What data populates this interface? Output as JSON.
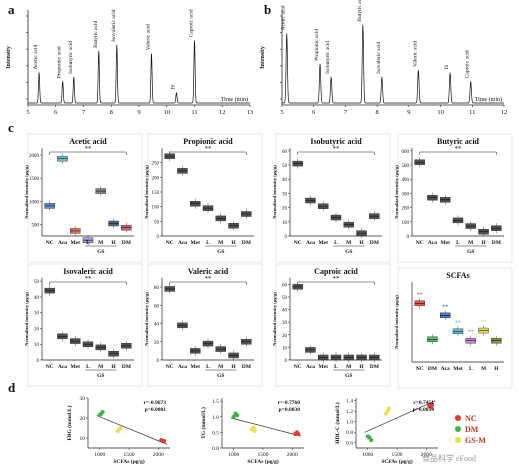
{
  "panels": {
    "a": "a",
    "b": "b",
    "c": "c",
    "d": "d"
  },
  "chromatograms": [
    {
      "panel": "a",
      "xlabel": "Time (min)",
      "ylabel": "Intensity",
      "xlim": [
        5,
        13
      ],
      "xticks": [
        "5",
        "6",
        "7",
        "8",
        "9",
        "10",
        "11",
        "12",
        "13"
      ],
      "peaks": [
        {
          "time": 5.4,
          "height": 0.35,
          "label": "Acetic acid"
        },
        {
          "time": 6.25,
          "height": 0.25,
          "label": "Propionic acid"
        },
        {
          "time": 6.65,
          "height": 0.3,
          "label": "Isobutyric acid"
        },
        {
          "time": 7.55,
          "height": 0.6,
          "label": "Butyric acid"
        },
        {
          "time": 8.2,
          "height": 0.67,
          "label": "Isovaleric acid"
        },
        {
          "time": 9.45,
          "height": 0.57,
          "label": "Valeric acid"
        },
        {
          "time": 10.35,
          "height": 0.12,
          "label": "IS"
        },
        {
          "time": 11.0,
          "height": 0.72,
          "label": "Caproic acid"
        }
      ]
    },
    {
      "panel": "b",
      "xlabel": "Time (min)",
      "ylabel": "Intensity",
      "xlim": [
        5,
        12
      ],
      "xticks": [
        "5",
        "6",
        "7",
        "8",
        "9",
        "10",
        "11",
        "12"
      ],
      "peaks": [
        {
          "time": 5.15,
          "height": 0.8,
          "label": "Acetic acid"
        },
        {
          "time": 6.2,
          "height": 0.45,
          "label": "Propionic acid"
        },
        {
          "time": 6.55,
          "height": 0.3,
          "label": "Isobutyric acid"
        },
        {
          "time": 7.55,
          "height": 0.9,
          "label": "Butyric acid"
        },
        {
          "time": 8.15,
          "height": 0.3,
          "label": "Isovaleric acid"
        },
        {
          "time": 9.3,
          "height": 0.38,
          "label": "Valeric acid"
        },
        {
          "time": 10.3,
          "height": 0.35,
          "label": "IS"
        },
        {
          "time": 10.95,
          "height": 0.25,
          "label": "Caproic acid"
        }
      ]
    }
  ],
  "chart_data": [
    {
      "type": "box",
      "title": "Acetic acid",
      "ylabel": "Normalized intensity (µg/g)",
      "yticks": [
        "500",
        "1000",
        "1500",
        "2000"
      ],
      "ylim": [
        250,
        2150
      ],
      "groups": [
        "NC",
        "Aca",
        "Met",
        "L",
        "M",
        "H",
        "DM"
      ],
      "subgroup_label": "GS",
      "values": [
        900,
        1920,
        360,
        160,
        1220,
        520,
        430
      ],
      "colors": [
        "#4a78c8",
        "#5bb3c2",
        "#d2634a",
        "#8d8de0",
        "#6f6f6f",
        "#37486e",
        "#c04a73"
      ],
      "significance": "**"
    },
    {
      "type": "box",
      "title": "Propionic acid",
      "ylabel": "Normalized intensity (µg/g)",
      "yticks": [
        "0",
        "50",
        "100",
        "150",
        "200",
        "250"
      ],
      "ylim": [
        0,
        300
      ],
      "groups": [
        "NC",
        "Aca",
        "Met",
        "L",
        "M",
        "H",
        "DM"
      ],
      "subgroup_label": "GS",
      "values": [
        272,
        222,
        110,
        95,
        60,
        35,
        75
      ],
      "colors": [
        "#333333",
        "#333333",
        "#333333",
        "#333333",
        "#333333",
        "#333333",
        "#333333"
      ],
      "significance": "**"
    },
    {
      "type": "box",
      "title": "Isobutyric acid",
      "ylabel": "Normalized intensity (µg/g)",
      "yticks": [
        "0",
        "10",
        "20",
        "30",
        "40",
        "50",
        "60"
      ],
      "ylim": [
        0,
        62
      ],
      "groups": [
        "NC",
        "Aca",
        "Met",
        "L",
        "M",
        "H",
        "DM"
      ],
      "subgroup_label": "GS",
      "values": [
        51,
        25,
        21,
        13,
        8,
        2,
        14
      ],
      "colors": [
        "#333333",
        "#333333",
        "#333333",
        "#333333",
        "#333333",
        "#333333",
        "#333333"
      ],
      "significance": "**"
    },
    {
      "type": "box",
      "title": "Butyric acid",
      "ylabel": "Normalized intensity (µg/g)",
      "yticks": [
        "0",
        "100",
        "200",
        "300",
        "400",
        "500",
        "600"
      ],
      "ylim": [
        0,
        620
      ],
      "groups": [
        "NC",
        "Aca",
        "Met",
        "L",
        "M",
        "H",
        "DM"
      ],
      "subgroup_label": "GS",
      "values": [
        520,
        270,
        255,
        110,
        70,
        30,
        55
      ],
      "colors": [
        "#333333",
        "#333333",
        "#333333",
        "#333333",
        "#333333",
        "#333333",
        "#333333"
      ],
      "significance": "**"
    },
    {
      "type": "box",
      "title": "Isovaleric acid",
      "ylabel": "Normalized intensity (µg/g)",
      "yticks": [
        "0",
        "10",
        "20",
        "30",
        "40",
        "50"
      ],
      "ylim": [
        0,
        52
      ],
      "groups": [
        "NC",
        "Aca",
        "Met",
        "L",
        "M",
        "H",
        "DM"
      ],
      "subgroup_label": "GS",
      "values": [
        44,
        15,
        12,
        10,
        8,
        4,
        9
      ],
      "colors": [
        "#333333",
        "#333333",
        "#333333",
        "#333333",
        "#333333",
        "#333333",
        "#333333"
      ],
      "significance": "**"
    },
    {
      "type": "box",
      "title": "Valeric acid",
      "ylabel": "Normalized intensity (µg/g)",
      "yticks": [
        "0",
        "20",
        "40",
        "60",
        "80"
      ],
      "ylim": [
        0,
        90
      ],
      "groups": [
        "NC",
        "Aca",
        "Met",
        "L",
        "M",
        "H",
        "DM"
      ],
      "subgroup_label": "GS",
      "values": [
        78,
        38,
        10,
        18,
        12,
        5,
        20
      ],
      "colors": [
        "#333333",
        "#333333",
        "#333333",
        "#333333",
        "#333333",
        "#333333",
        "#333333"
      ],
      "significance": "**"
    },
    {
      "type": "box",
      "title": "Caproic acid",
      "ylabel": "Normalized intensity (µg/g)",
      "yticks": [
        "0",
        "10",
        "20",
        "30",
        "40",
        "50",
        "60"
      ],
      "ylim": [
        0,
        65
      ],
      "groups": [
        "NC",
        "Aca",
        "Met",
        "L",
        "M",
        "H",
        "DM"
      ],
      "subgroup_label": "GS",
      "values": [
        58,
        8,
        2,
        2,
        2,
        2,
        2
      ],
      "colors": [
        "#333333",
        "#333333",
        "#333333",
        "#333333",
        "#333333",
        "#333333",
        "#333333"
      ],
      "significance": "**"
    },
    {
      "type": "box",
      "title": "SCFAs",
      "ylabel": "Normalized intensity (µg/g)",
      "yticks": [],
      "ylim": [
        0,
        3000
      ],
      "groups": [
        "NC",
        "DM",
        "Aca",
        "Met",
        "L",
        "M",
        "H"
      ],
      "subgroup_label": "",
      "values": [
        2200,
        850,
        1750,
        1150,
        800,
        1180,
        800
      ],
      "colors": [
        "#e23a2e",
        "#43b04a",
        "#2f5fb8",
        "#4ab6c6",
        "#c86ed0",
        "#e8d84a",
        "#7a7a2a"
      ],
      "significance": "**",
      "marks": [
        "**",
        "",
        "**",
        "**",
        "**",
        "**",
        ""
      ]
    },
    {
      "type": "scatter",
      "xlabel": "SCFAs (µg/g)",
      "ylabel": "FBG (mmol/L)",
      "xticks": [
        "1000",
        "1500",
        "2000"
      ],
      "yticks": [
        "10",
        "20",
        "30"
      ],
      "xlim": [
        800,
        2200
      ],
      "ylim": [
        5,
        30
      ],
      "stats": {
        "r": "r=-0.9673",
        "p": "p=0.0001"
      },
      "points": [
        [
          1020,
          22
        ],
        [
          1050,
          23
        ],
        [
          1000,
          21.5
        ],
        [
          1320,
          14
        ],
        [
          1360,
          15
        ],
        [
          1310,
          13.5
        ],
        [
          2050,
          9
        ],
        [
          2100,
          8.5
        ]
      ],
      "point_groups": [
        "DM",
        "DM",
        "DM",
        "GS-M",
        "GS-M",
        "GS-M",
        "NC",
        "NC"
      ]
    },
    {
      "type": "scatter",
      "xlabel": "SCFAs (µg/g)",
      "ylabel": "TG (mmol/L)",
      "xticks": [
        "1000",
        "1500",
        "2000"
      ],
      "yticks": [
        "0.0",
        "0.5",
        "1.0",
        "1.5"
      ],
      "xlim": [
        800,
        2200
      ],
      "ylim": [
        0,
        1.6
      ],
      "stats": {
        "r": "r=-0.7760",
        "p": "p=0.0030"
      },
      "points": [
        [
          1030,
          1.1
        ],
        [
          1060,
          1.05
        ],
        [
          1000,
          1.0
        ],
        [
          1340,
          0.65
        ],
        [
          1360,
          0.55
        ],
        [
          1310,
          0.6
        ],
        [
          2050,
          0.45
        ],
        [
          2100,
          0.45
        ],
        [
          2080,
          0.5
        ]
      ],
      "point_groups": [
        "DM",
        "DM",
        "DM",
        "GS-M",
        "GS-M",
        "GS-M",
        "NC",
        "NC",
        "NC"
      ]
    },
    {
      "type": "scatter",
      "xlabel": "SCFAs (µg/g)",
      "ylabel": "HDL-C (mmol/L)",
      "xticks": [
        "1000",
        "1500",
        "2000"
      ],
      "yticks": [
        "0.6",
        "0.8",
        "1.0",
        "1.2",
        "1.4"
      ],
      "xlim": [
        800,
        2200
      ],
      "ylim": [
        0.5,
        1.45
      ],
      "stats": {
        "r": "r=0.7451",
        "p": "p=0.0054"
      },
      "points": [
        [
          1030,
          0.7
        ],
        [
          1060,
          0.65
        ],
        [
          1000,
          0.72
        ],
        [
          1340,
          1.2
        ],
        [
          1360,
          1.25
        ],
        [
          1310,
          1.15
        ],
        [
          2050,
          1.3
        ],
        [
          2100,
          1.32
        ],
        [
          2080,
          1.28
        ]
      ],
      "point_groups": [
        "DM",
        "DM",
        "DM",
        "GS-M",
        "GS-M",
        "GS-M",
        "NC",
        "NC",
        "NC"
      ]
    }
  ],
  "legend": [
    {
      "label": "NC",
      "color": "#e23a2e"
    },
    {
      "label": "DM",
      "color": "#43b04a"
    },
    {
      "label": "GS-M",
      "color": "#e8e050"
    }
  ],
  "watermark": "食品科学 eFood"
}
